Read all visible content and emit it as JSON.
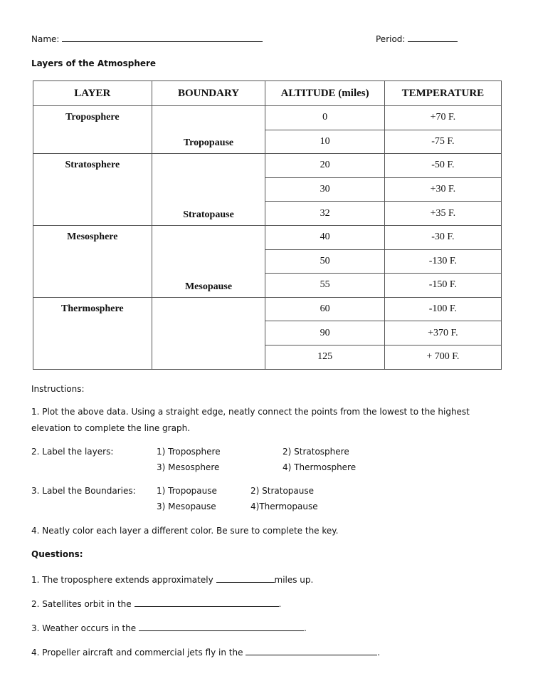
{
  "header": {
    "name_label": "Name:",
    "period_label": "Period:"
  },
  "title": "Layers of the Atmosphere",
  "table": {
    "headers": [
      "LAYER",
      "BOUNDARY",
      "ALTITUDE (miles)",
      "TEMPERATURE"
    ],
    "groups": [
      {
        "layer": "Troposphere",
        "boundary": "Tropopause",
        "rows": [
          [
            "0",
            "+70 F."
          ],
          [
            "10",
            "-75 F."
          ]
        ]
      },
      {
        "layer": "Stratosphere",
        "boundary": "Stratopause",
        "rows": [
          [
            "20",
            "-50 F."
          ],
          [
            "30",
            "+30 F."
          ],
          [
            "32",
            "+35 F."
          ]
        ]
      },
      {
        "layer": "Mesosphere",
        "boundary": "Mesopause",
        "rows": [
          [
            "40",
            "-30 F."
          ],
          [
            "50",
            "-130 F."
          ],
          [
            "55",
            "-150 F."
          ]
        ]
      },
      {
        "layer": "Thermosphere",
        "boundary": "",
        "rows": [
          [
            "60",
            "-100 F."
          ],
          [
            "90",
            "+370 F."
          ],
          [
            "125",
            "+ 700 F."
          ]
        ]
      }
    ]
  },
  "instructions": {
    "heading": "Instructions:",
    "i1a": "1. Plot the above data.  Using a straight edge, neatly connect the points from the lowest to the highest",
    "i1b": "elevation to complete the line graph.",
    "i2": "2.  Label the layers:",
    "i2_items": [
      "1) Troposphere",
      "2) Stratosphere",
      "3) Mesosphere",
      "4) Thermosphere"
    ],
    "i3": "3.  Label the Boundaries:",
    "i3_items": [
      "1) Tropopause",
      "2) Stratopause",
      "3) Mesopause",
      "4)Thermopause"
    ],
    "i4": "4.  Neatly color each layer a different color. Be sure to complete the key."
  },
  "questions": {
    "heading": "Questions:",
    "q1a": "1. The troposphere extends approximately ",
    "q1b": "miles up.",
    "q2": "2. Satellites orbit in the ",
    "q3": "3. Weather occurs in the ",
    "q4": "4. Propeller aircraft and commercial jets fly in the "
  }
}
